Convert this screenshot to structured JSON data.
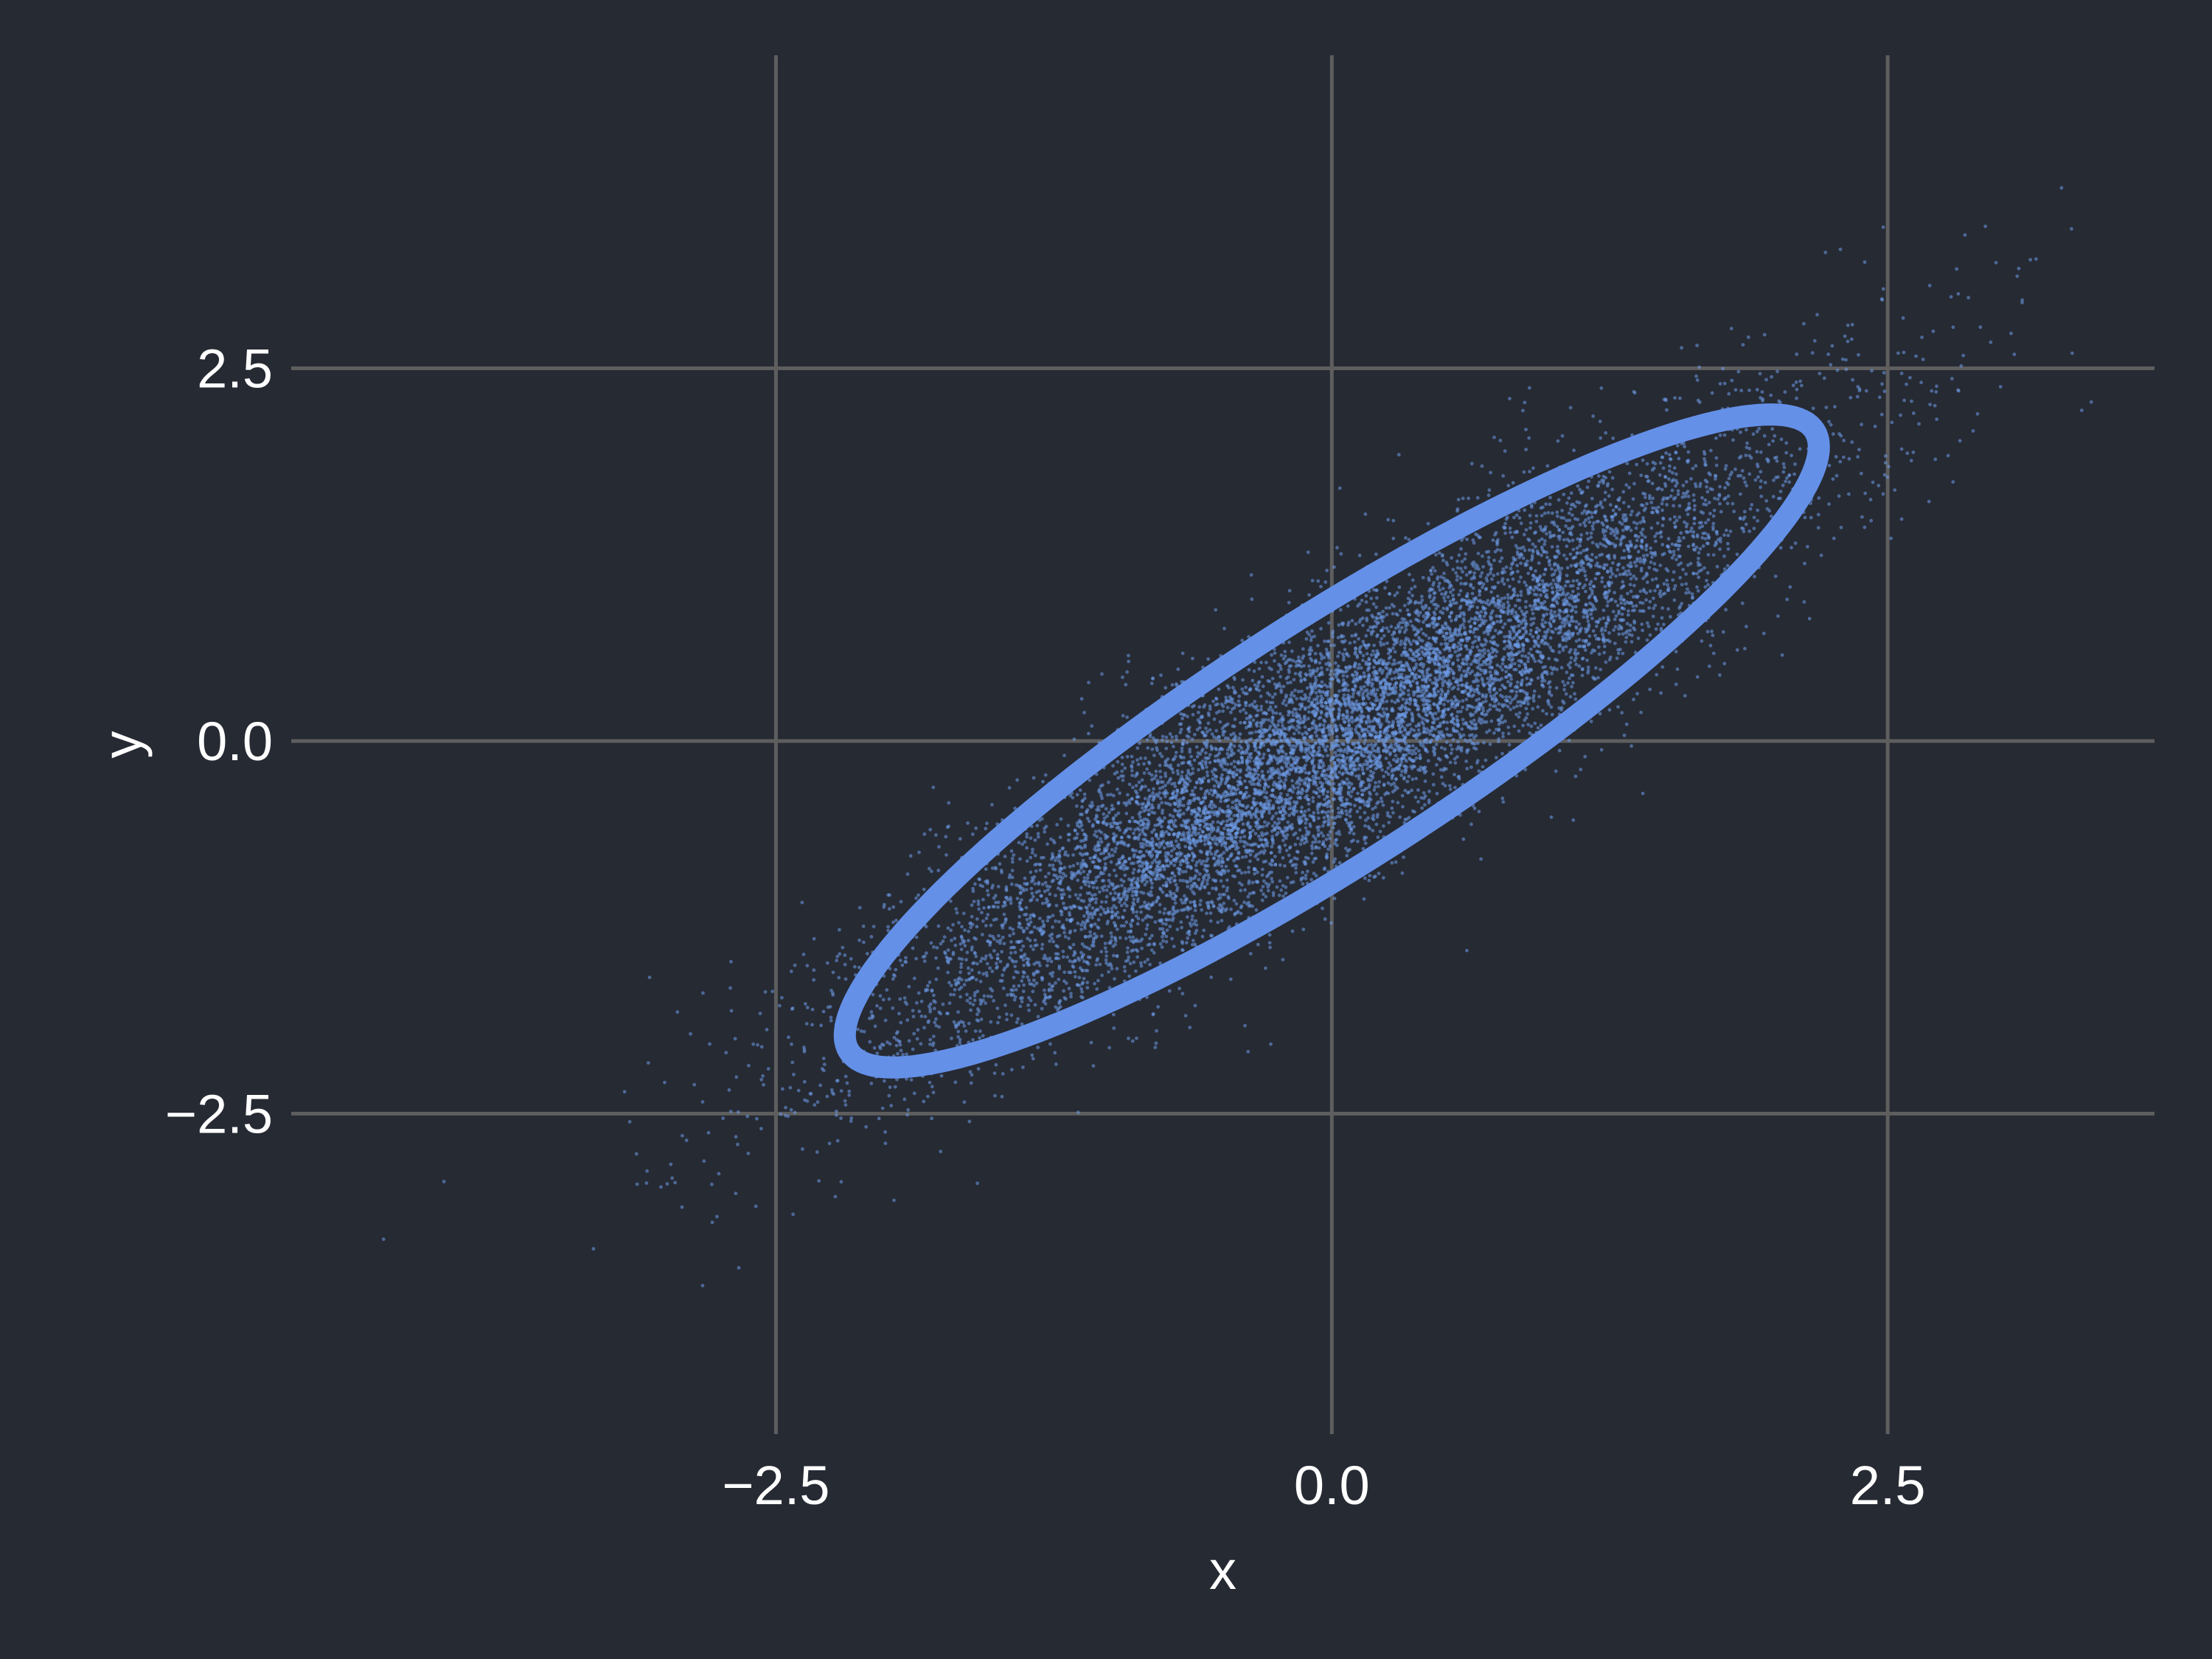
{
  "chart_data": {
    "type": "scatter",
    "title": "",
    "xlabel": "x",
    "ylabel": "y",
    "xlim": [
      -4.68,
      3.7
    ],
    "ylim": [
      -4.65,
      4.6
    ],
    "xticks": [
      -2.5,
      0.0,
      2.5
    ],
    "xtick_labels": [
      "−2.5",
      "0.0",
      "2.5"
    ],
    "yticks": [
      -2.5,
      0.0,
      2.5
    ],
    "ytick_labels": [
      "−2.5",
      "0.0",
      "2.5"
    ],
    "grid": true,
    "legend": "none",
    "scatter": {
      "n_points": 10000,
      "mean": [
        0,
        0
      ],
      "std_x": 1.0,
      "std_y": 1.0,
      "correlation": 0.9
    },
    "ellipse": {
      "center": [
        0,
        0
      ],
      "semi_major": 3.02,
      "semi_minor": 0.69,
      "angle_deg": 45
    },
    "colors": {
      "background": "#262a33",
      "grid": "#5e5e5e",
      "points": "#6e9ae8",
      "ellipse": "#6490e8",
      "text": "#ffffff"
    }
  }
}
